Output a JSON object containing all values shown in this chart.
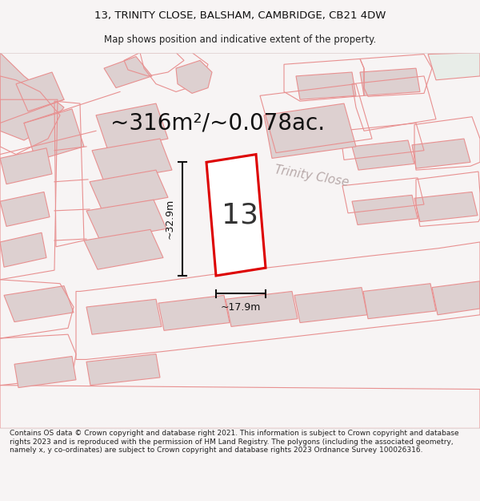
{
  "title_line1": "13, TRINITY CLOSE, BALSHAM, CAMBRIDGE, CB21 4DW",
  "title_line2": "Map shows position and indicative extent of the property.",
  "area_text": "~316m²/~0.078ac.",
  "street_name": "Trinity Close",
  "plot_number": "13",
  "width_label": "~17.9m",
  "height_label": "~32.9m",
  "footer_text": "Contains OS data © Crown copyright and database right 2021. This information is subject to Crown copyright and database rights 2023 and is reproduced with the permission of HM Land Registry. The polygons (including the associated geometry, namely x, y co-ordinates) are subject to Crown copyright and database rights 2023 Ordnance Survey 100026316.",
  "bg_color": "#f7f4f4",
  "map_bg": "#f7f4f4",
  "outline_color": "#e89090",
  "fill_color": "#ddd0d0",
  "highlight_color": "#dd0000",
  "highlight_fill": "#ffffff",
  "road_label_color": "#b8aaaa",
  "figsize": [
    6.0,
    6.25
  ],
  "dpi": 100,
  "title_fontsize": 9.5,
  "subtitle_fontsize": 8.5,
  "area_fontsize": 20,
  "plot_num_fontsize": 26,
  "dim_fontsize": 9,
  "street_fontsize": 11,
  "footer_fontsize": 6.5
}
